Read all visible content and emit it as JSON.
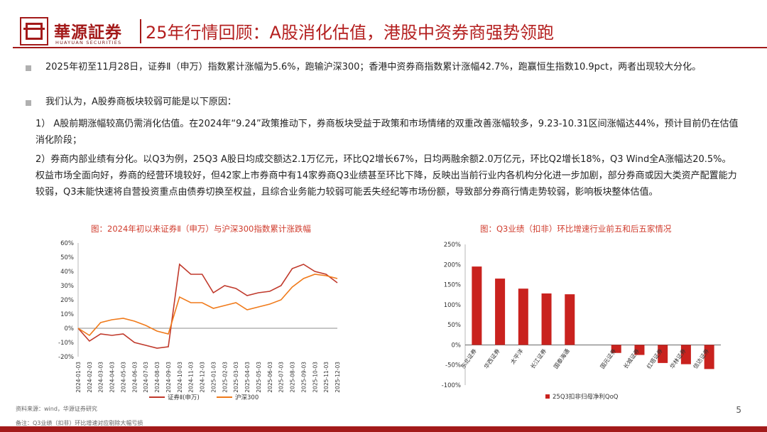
{
  "logo": {
    "name": "華源証券",
    "sub": "HUAYUAN SECURITIES"
  },
  "title": "25年行情回顾：A股消化估值，港股中资券商强势领跑",
  "paragraphs": {
    "p1": "2025年初至11月28日，证券Ⅱ（申万）指数累计涨幅为5.6%，跑输沪深300；香港中资券商指数累计涨幅42.7%，跑赢恒生指数10.9pct，两者出现较大分化。",
    "p2": "我们认为，A股券商板块较弱可能是以下原因：",
    "p3": "1） A股前期涨幅较高仍需消化估值。在2024年“9.24”政策推动下，券商板块受益于政策和市场情绪的双重改善涨幅较多，9.23-10.31区间涨幅达44%，预计目前仍在估值消化阶段；",
    "p4": "2）券商内部业绩有分化。以Q3为例，25Q3 A股日均成交额达2.1万亿元，环比Q2增长67%，日均两融余额2.0万亿元，环比Q2增长18%，Q3 Wind全A涨幅达20.5%。权益市场全面向好，券商的经营环境较好，但42家上市券商中有14家券商Q3业绩甚至环比下降，反映出当前行业内各机构分化进一步加剧，部分券商或因大类资产配置能力较弱，Q3未能快速将自营投资重点由债券切换至权益，且综合业务能力较弱可能丢失经纪等市场份额，导致部分券商行情走势较弱，影响板块整体估值。"
  },
  "captions": {
    "left": "图：2024年初以来证券Ⅱ（申万）与沪深300指数累计涨跌幅",
    "right": "图：Q3业绩（扣非）环比增速行业前五和后五家情况"
  },
  "footer": {
    "source": "资料来源：wind，华源证券研究",
    "note": "备注：Q3业绩（扣非）环比增速对应剔除大幅亏损",
    "page": "5"
  },
  "colors": {
    "brand": "#a31a1a",
    "series_dark": "#c0392b",
    "series_light": "#f07a1a",
    "bar": "#c9221e"
  },
  "chart_data": [
    {
      "type": "line",
      "title": "2024年初以来证券Ⅱ（申万）与沪深300指数累计涨跌幅",
      "x": [
        "2024-01-03",
        "2024-02-03",
        "2024-03-03",
        "2024-04-03",
        "2024-05-03",
        "2024-06-03",
        "2024-07-03",
        "2024-08-03",
        "2024-09-03",
        "2024-10-03",
        "2024-11-03",
        "2024-12-03",
        "2025-01-03",
        "2025-02-03",
        "2025-03-03",
        "2025-04-03",
        "2025-05-03",
        "2025-06-03",
        "2025-07-03",
        "2025-08-03",
        "2025-09-03",
        "2025-10-03",
        "2025-11-03",
        "2025-12-03"
      ],
      "ylim": [
        -20,
        60
      ],
      "yticks": [
        "60%",
        "50%",
        "40%",
        "30%",
        "20%",
        "10%",
        "0%",
        "-10%",
        "-20%"
      ],
      "series": [
        {
          "name": "证券Ⅱ(申万)",
          "values": [
            0,
            -9,
            -4,
            -5,
            -4,
            -10,
            -12,
            -14,
            -13,
            45,
            38,
            38,
            25,
            30,
            28,
            23,
            25,
            26,
            30,
            42,
            45,
            40,
            38,
            32
          ]
        },
        {
          "name": "沪深300",
          "values": [
            0,
            -5,
            4,
            6,
            7,
            5,
            2,
            -2,
            -4,
            22,
            18,
            18,
            14,
            16,
            18,
            13,
            15,
            17,
            20,
            29,
            35,
            38,
            37,
            35
          ]
        }
      ]
    },
    {
      "type": "bar",
      "title": "Q3业绩（扣非）环比增速行业前五和后五家情况",
      "categories": [
        "东北证券",
        "华西证券",
        "太平洋",
        "长江证券",
        "国泰海通",
        "国元证券",
        "长城证券",
        "红塔证券",
        "华林证券",
        "信达证券"
      ],
      "values": [
        195,
        165,
        140,
        128,
        126,
        -20,
        -25,
        -45,
        -48,
        -60
      ],
      "ylim": [
        -100,
        250
      ],
      "yticks": [
        "250%",
        "200%",
        "150%",
        "100%",
        "50%",
        "0%",
        "-50%",
        "-100%"
      ],
      "legend": "25Q3扣非归母净利QoQ"
    }
  ]
}
